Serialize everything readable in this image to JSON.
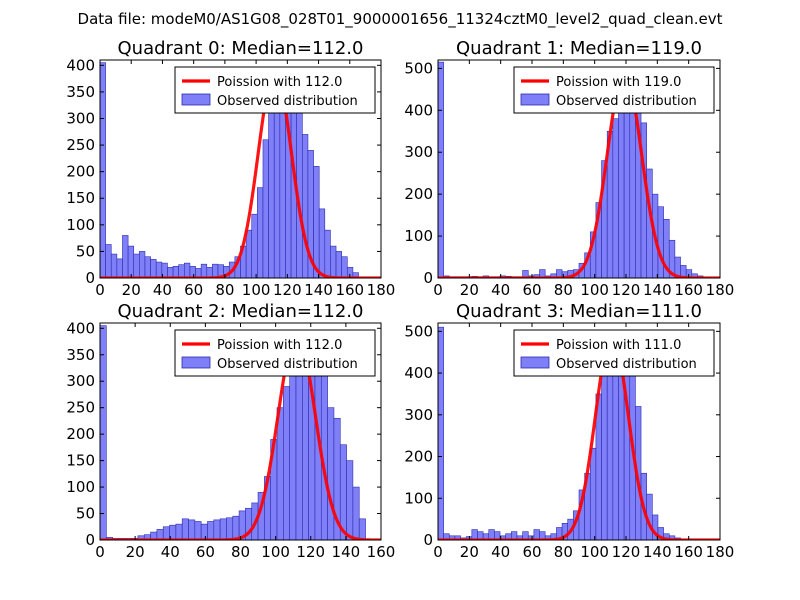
{
  "figure_title": "Data file: modeM0/AS1G08_028T01_9000001656_11324cztM0_level2_quad_clean.evt",
  "colors": {
    "bar_fill": "#7f7ff8",
    "bar_edge": "#2b2bb0",
    "curve": "#ff0000"
  },
  "chart_data": [
    {
      "type": "bar",
      "title": "Quadrant 0: Median=112.0",
      "median": 112.0,
      "xlim": [
        0,
        180
      ],
      "ylim": [
        0,
        410
      ],
      "xticks": [
        0,
        20,
        40,
        60,
        80,
        100,
        120,
        140,
        160,
        180
      ],
      "yticks": [
        0,
        50,
        100,
        150,
        200,
        250,
        300,
        350,
        400
      ],
      "bin_width": 3.6,
      "bin_start": 0,
      "values": [
        405,
        63,
        45,
        36,
        80,
        60,
        45,
        50,
        40,
        35,
        30,
        28,
        20,
        22,
        25,
        28,
        22,
        18,
        26,
        20,
        26,
        25,
        22,
        30,
        40,
        60,
        90,
        120,
        170,
        260,
        310,
        390,
        390,
        340,
        390,
        310,
        270,
        240,
        210,
        130,
        90,
        60,
        50,
        40,
        20,
        10,
        0,
        0,
        0,
        0
      ],
      "legend": {
        "loc": "upper right",
        "entries": [
          "Poission with 112.0",
          "Observed distribution"
        ]
      },
      "curve": {
        "type": "poisson-scaled",
        "mean": 112.0,
        "peak": 390
      }
    },
    {
      "type": "bar",
      "title": "Quadrant 1: Median=119.0",
      "median": 119.0,
      "xlim": [
        0,
        180
      ],
      "ylim": [
        0,
        520
      ],
      "xticks": [
        0,
        20,
        40,
        60,
        80,
        100,
        120,
        140,
        160,
        180
      ],
      "yticks": [
        0,
        100,
        200,
        300,
        400,
        500
      ],
      "bin_width": 3.6,
      "bin_start": 0,
      "values": [
        515,
        5,
        3,
        3,
        3,
        3,
        4,
        3,
        5,
        3,
        3,
        5,
        4,
        3,
        3,
        18,
        5,
        8,
        20,
        5,
        10,
        20,
        15,
        18,
        20,
        35,
        60,
        110,
        180,
        280,
        350,
        380,
        400,
        500,
        450,
        430,
        370,
        260,
        200,
        170,
        140,
        90,
        50,
        30,
        20,
        10,
        5,
        0,
        0,
        0
      ],
      "legend": {
        "loc": "upper right",
        "entries": [
          "Poission with 119.0",
          "Observed distribution"
        ]
      },
      "curve": {
        "type": "poisson-scaled",
        "mean": 119.0,
        "peak": 490
      }
    },
    {
      "type": "bar",
      "title": "Quadrant 2: Median=112.0",
      "median": 112.0,
      "xlim": [
        0,
        160
      ],
      "ylim": [
        0,
        410
      ],
      "xticks": [
        0,
        20,
        40,
        60,
        80,
        100,
        120,
        140,
        160
      ],
      "yticks": [
        0,
        50,
        100,
        150,
        200,
        250,
        300,
        350,
        400
      ],
      "bin_width": 3.6,
      "bin_start": 0,
      "values": [
        405,
        5,
        3,
        3,
        3,
        3,
        8,
        10,
        15,
        20,
        25,
        28,
        30,
        40,
        38,
        35,
        30,
        35,
        38,
        40,
        42,
        45,
        55,
        60,
        70,
        90,
        120,
        190,
        250,
        290,
        320,
        390,
        370,
        380,
        350,
        310,
        250,
        230,
        180,
        150,
        100,
        40,
        0,
        0,
        0
      ],
      "legend": {
        "loc": "upper right",
        "entries": [
          "Poission with 112.0",
          "Observed distribution"
        ]
      },
      "curve": {
        "type": "poisson-scaled",
        "mean": 112.0,
        "peak": 390
      }
    },
    {
      "type": "bar",
      "title": "Quadrant 3: Median=111.0",
      "median": 111.0,
      "xlim": [
        0,
        180
      ],
      "ylim": [
        0,
        520
      ],
      "xticks": [
        0,
        20,
        40,
        60,
        80,
        100,
        120,
        140,
        160,
        180
      ],
      "yticks": [
        0,
        100,
        200,
        300,
        400,
        500
      ],
      "bin_width": 3.6,
      "bin_start": 0,
      "values": [
        510,
        15,
        10,
        10,
        5,
        8,
        25,
        20,
        15,
        25,
        20,
        10,
        15,
        20,
        10,
        20,
        10,
        25,
        20,
        10,
        15,
        30,
        40,
        50,
        70,
        120,
        160,
        220,
        350,
        440,
        470,
        490,
        480,
        460,
        420,
        320,
        160,
        110,
        60,
        30,
        15,
        10,
        5,
        0,
        0,
        0
      ],
      "legend": {
        "loc": "upper right",
        "entries": [
          "Poission with 111.0",
          "Observed distribution"
        ]
      },
      "curve": {
        "type": "poisson-scaled",
        "mean": 111.0,
        "peak": 490
      }
    }
  ]
}
